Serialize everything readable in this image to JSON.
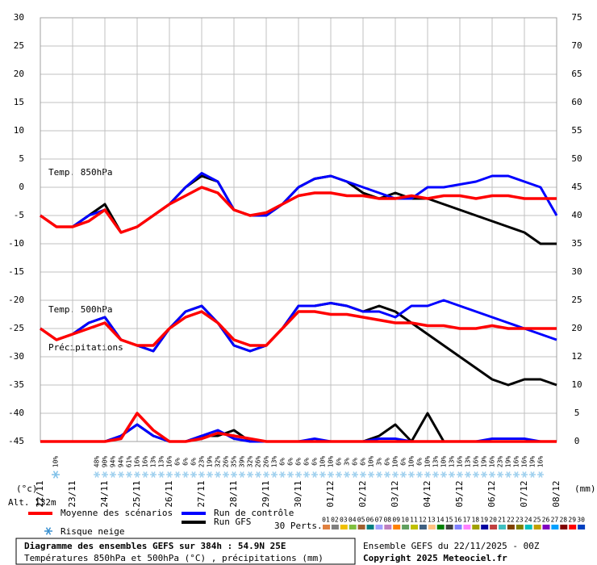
{
  "chart_data": {
    "type": "line",
    "panel_labels": [
      "Temp. 850hPa",
      "Temp. 500hPa",
      "Précipitations"
    ],
    "y_unit": "(°c)",
    "y2_unit": "(mm)",
    "altitude": "Alt. 132m",
    "x": [
      "22/11",
      "23/11",
      "24/11",
      "25/11",
      "26/11",
      "27/11",
      "28/11",
      "29/11",
      "30/11",
      "01/12",
      "02/12",
      "03/12",
      "04/12",
      "05/12",
      "06/12",
      "07/12",
      "08/12"
    ],
    "ylim": [
      -45,
      30
    ],
    "yticks": [
      30,
      25,
      20,
      15,
      10,
      5,
      0,
      -5,
      -10,
      -15,
      -20,
      -25,
      -30,
      -35,
      -40,
      -45
    ],
    "y2lim": [
      0,
      75
    ],
    "y2ticks": [
      75,
      70,
      65,
      60,
      55,
      50,
      45,
      40,
      35,
      30,
      25,
      20,
      12,
      10,
      5,
      0
    ],
    "grid": true,
    "series": [
      {
        "name": "Moyenne des scénarios",
        "color": "#ff0000",
        "t850": [
          -5,
          -7,
          -7,
          -6,
          -4,
          -8,
          -7,
          -5,
          -3,
          -1.5,
          0,
          -1,
          -4,
          -5,
          -4.5,
          -3,
          -1.5,
          -1,
          -1,
          -1.5,
          -1.5,
          -2,
          -2,
          -1.5,
          -2,
          -1.5,
          -1.5,
          -2,
          -1.5,
          -1.5,
          -2,
          -2,
          -2
        ],
        "t500": [
          -25,
          -27,
          -26,
          -25,
          -24,
          -27,
          -28,
          -28,
          -25,
          -23,
          -22,
          -24,
          -27,
          -28,
          -28,
          -25,
          -22,
          -22,
          -22.5,
          -22.5,
          -23,
          -23.5,
          -24,
          -24,
          -24.5,
          -24.5,
          -25,
          -25,
          -24.5,
          -25,
          -25,
          -25,
          -25
        ],
        "precip": [
          0,
          0,
          0,
          0,
          0,
          0.5,
          5,
          2,
          0,
          0,
          0.5,
          1.5,
          1,
          0.5,
          0,
          0,
          0,
          0,
          0,
          0,
          0,
          0,
          0,
          0,
          0,
          0,
          0,
          0,
          0,
          0,
          0,
          0,
          0
        ]
      },
      {
        "name": "Run de contrôle",
        "color": "#0000ff",
        "t850": [
          -5,
          -7,
          -7,
          -5,
          -4,
          -8,
          -7,
          -5,
          -3,
          0,
          2.5,
          1,
          -4,
          -5,
          -5,
          -3,
          0,
          1.5,
          2,
          1,
          0,
          -1,
          -2,
          -2,
          0,
          0,
          0.5,
          1,
          2,
          2,
          1,
          0,
          -5
        ],
        "t500": [
          -25,
          -27,
          -26,
          -24,
          -23,
          -27,
          -28,
          -29,
          -25,
          -22,
          -21,
          -24,
          -28,
          -29,
          -28,
          -25,
          -21,
          -21,
          -20.5,
          -21,
          -22,
          -22,
          -23,
          -21,
          -21,
          -20,
          -21,
          -22,
          -23,
          -24,
          -25,
          -26,
          -27
        ],
        "precip": [
          0,
          0,
          0,
          0,
          0,
          1,
          3,
          1,
          0,
          0,
          1,
          2,
          0.5,
          0,
          0,
          0,
          0,
          0.5,
          0,
          0,
          0,
          0.5,
          0.5,
          0,
          0,
          0,
          0,
          0,
          0.5,
          0.5,
          0.5,
          0,
          0
        ]
      },
      {
        "name": "Run GFS",
        "color": "#000000",
        "t850": [
          -5,
          -7,
          -7,
          -5,
          -3,
          -8,
          -7,
          -5,
          -3,
          0,
          2,
          1,
          -4,
          -5,
          -5,
          -3,
          0,
          1.5,
          2,
          1,
          -1,
          -2,
          -1,
          -2,
          -2,
          -3,
          -4,
          -5,
          -6,
          -7,
          -8,
          -10,
          -10
        ],
        "t500": [
          -25,
          -27,
          -26,
          -24,
          -23,
          -27,
          -28,
          -29,
          -25,
          -22,
          -21,
          -24,
          -28,
          -29,
          -28,
          -25,
          -21,
          -21,
          -20.5,
          -21,
          -22,
          -21,
          -22,
          -24,
          -26,
          -28,
          -30,
          -32,
          -34,
          -35,
          -34,
          -34,
          -35
        ],
        "precip": [
          0,
          0,
          0,
          0,
          0,
          1,
          3,
          1,
          0,
          0,
          1,
          1,
          2,
          0,
          0,
          0,
          0,
          0,
          0,
          0,
          0,
          1,
          3,
          0,
          5,
          0,
          0,
          0,
          0,
          0,
          0,
          0,
          0
        ]
      }
    ],
    "snow_legend": "Risque neige",
    "snow_risk_first": "10%",
    "snow_risk": [
      "48%",
      "90%",
      "94%",
      "94%",
      "61%",
      "16%",
      "16%",
      "13%",
      "13%",
      "16%",
      "6%",
      "6%",
      "6%",
      "23%",
      "19%",
      "32%",
      "26%",
      "35%",
      "39%",
      "32%",
      "26%",
      "26%",
      "13%",
      "6%",
      "6%",
      "6%",
      "6%",
      "6%",
      "10%",
      "10%",
      "6%",
      "3%",
      "6%",
      "6%",
      "10%",
      "3%",
      "6%",
      "10%",
      "6%",
      "10%",
      "6%",
      "10%",
      "13%",
      "10%",
      "13%",
      "16%",
      "13%",
      "16%",
      "19%",
      "16%",
      "23%",
      "19%",
      "16%",
      "16%",
      "19%",
      "16%"
    ],
    "perturbations_label": "30 Perts.",
    "perturbations": [
      "01",
      "02",
      "03",
      "04",
      "05",
      "06",
      "07",
      "08",
      "09",
      "10",
      "11",
      "12",
      "13",
      "14",
      "15",
      "16",
      "17",
      "18",
      "19",
      "20",
      "21",
      "22",
      "23",
      "24",
      "25",
      "26",
      "27",
      "28",
      "29",
      "30"
    ],
    "perturbation_colors": [
      "#e08040",
      "#808080",
      "#f0c000",
      "#80c040",
      "#a06030",
      "#008080",
      "#a0a0ff",
      "#c080c0",
      "#ff8000",
      "#60a060",
      "#c0c000",
      "#406080",
      "#ffc080",
      "#008000",
      "#404040",
      "#8080ff",
      "#ff80ff",
      "#a0a000",
      "#0000a0",
      "#c04040",
      "#40c0c0",
      "#804000",
      "#808000",
      "#00c0c0",
      "#c0a000",
      "#8000c0",
      "#00a0ff",
      "#800000",
      "#ff0000",
      "#0040c0"
    ],
    "footer": {
      "title": "Diagramme des ensembles GEFS sur 384h : 54.9N 25E",
      "subtitle": "Températures 850hPa et 500hPa (°C) , précipitations (mm)",
      "run": "Ensemble GEFS du 22/11/2025 - 00Z",
      "copyright": "Copyright 2025 Meteociel.fr"
    }
  }
}
